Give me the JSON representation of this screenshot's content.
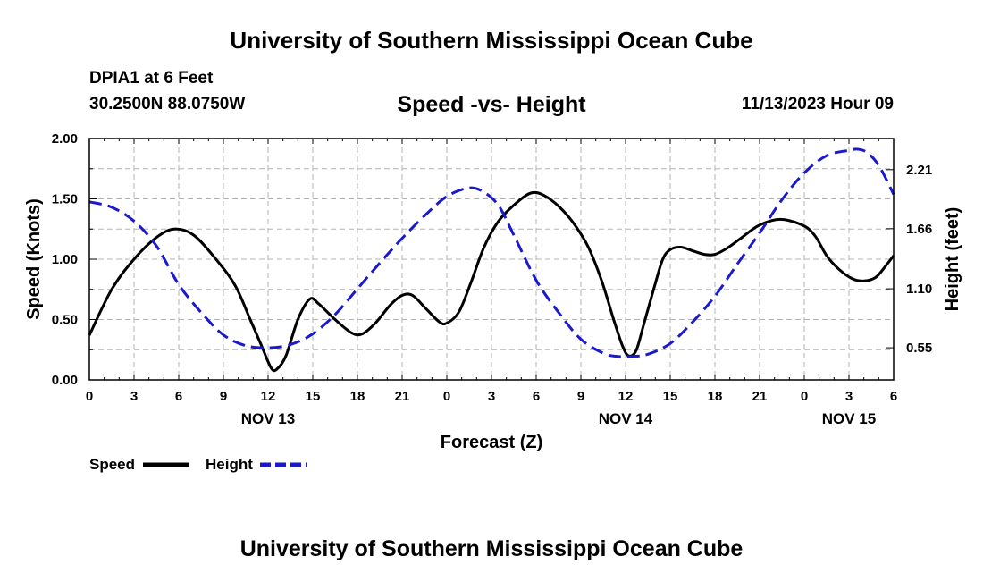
{
  "header": {
    "title": "University of Southern Mississippi Ocean Cube",
    "station": "DPIA1 at 6 Feet",
    "coords": "30.2500N  88.0750W",
    "datetime": "11/13/2023 Hour 09"
  },
  "footer": {
    "title": "University of Southern Mississippi Ocean Cube"
  },
  "chart_data": {
    "type": "line",
    "title": "Speed -vs- Height",
    "xlabel": "Forecast (Z)",
    "ylabel_left": "Speed (Knots)",
    "ylabel_right": "Height (feet)",
    "x_unit": "hours from Nov 13 00Z",
    "xlim": [
      0,
      54
    ],
    "ylim_left": [
      0,
      2
    ],
    "ylim_right": [
      0.251,
      2.5
    ],
    "grid": true,
    "x_ticks": [
      {
        "value": 0,
        "label": "0"
      },
      {
        "value": 3,
        "label": "3"
      },
      {
        "value": 6,
        "label": "6"
      },
      {
        "value": 9,
        "label": "9"
      },
      {
        "value": 12,
        "label": "12"
      },
      {
        "value": 15,
        "label": "15"
      },
      {
        "value": 18,
        "label": "18"
      },
      {
        "value": 21,
        "label": "21"
      },
      {
        "value": 24,
        "label": "0"
      },
      {
        "value": 27,
        "label": "3"
      },
      {
        "value": 30,
        "label": "6"
      },
      {
        "value": 33,
        "label": "9"
      },
      {
        "value": 36,
        "label": "12"
      },
      {
        "value": 39,
        "label": "15"
      },
      {
        "value": 42,
        "label": "18"
      },
      {
        "value": 45,
        "label": "21"
      },
      {
        "value": 48,
        "label": "0"
      },
      {
        "value": 51,
        "label": "3"
      },
      {
        "value": 54,
        "label": "6"
      }
    ],
    "date_labels": [
      {
        "value": 12,
        "label": "NOV 13"
      },
      {
        "value": 36,
        "label": "NOV 14"
      },
      {
        "value": 51,
        "label": "NOV 15"
      }
    ],
    "y_ticks_left": [
      {
        "value": 0,
        "label": "0.00"
      },
      {
        "value": 0.5,
        "label": "0.50"
      },
      {
        "value": 1.0,
        "label": "1.00"
      },
      {
        "value": 1.5,
        "label": "1.50"
      },
      {
        "value": 2.0,
        "label": "2.00"
      }
    ],
    "y_ticks_right": [
      {
        "value": 0.55,
        "label": "0.55"
      },
      {
        "value": 1.1,
        "label": "1.10"
      },
      {
        "value": 1.66,
        "label": "1.66"
      },
      {
        "value": 2.21,
        "label": "2.21"
      }
    ],
    "series": [
      {
        "name": "Speed",
        "axis": "left",
        "color": "#000000",
        "style": "solid",
        "points": [
          [
            0,
            0.37
          ],
          [
            1.5,
            0.75
          ],
          [
            3,
            1.0
          ],
          [
            4.5,
            1.18
          ],
          [
            5.7,
            1.25
          ],
          [
            7,
            1.2
          ],
          [
            8.5,
            1.0
          ],
          [
            9.8,
            0.78
          ],
          [
            10.8,
            0.5
          ],
          [
            11.5,
            0.3
          ],
          [
            12.2,
            0.1
          ],
          [
            12.6,
            0.09
          ],
          [
            13.2,
            0.2
          ],
          [
            14,
            0.5
          ],
          [
            14.8,
            0.67
          ],
          [
            15.4,
            0.63
          ],
          [
            16.5,
            0.5
          ],
          [
            17.6,
            0.39
          ],
          [
            18.3,
            0.38
          ],
          [
            19.2,
            0.47
          ],
          [
            20.2,
            0.62
          ],
          [
            21,
            0.7
          ],
          [
            21.7,
            0.7
          ],
          [
            22.6,
            0.59
          ],
          [
            23.5,
            0.48
          ],
          [
            24,
            0.47
          ],
          [
            24.8,
            0.56
          ],
          [
            25.6,
            0.8
          ],
          [
            26.5,
            1.1
          ],
          [
            27.5,
            1.32
          ],
          [
            28.8,
            1.48
          ],
          [
            29.7,
            1.55
          ],
          [
            30.5,
            1.53
          ],
          [
            31.5,
            1.44
          ],
          [
            32.5,
            1.3
          ],
          [
            33.5,
            1.1
          ],
          [
            34.4,
            0.82
          ],
          [
            35.2,
            0.5
          ],
          [
            35.8,
            0.28
          ],
          [
            36.2,
            0.2
          ],
          [
            36.7,
            0.24
          ],
          [
            37.2,
            0.45
          ],
          [
            38,
            0.8
          ],
          [
            38.5,
            1.0
          ],
          [
            39,
            1.08
          ],
          [
            39.7,
            1.1
          ],
          [
            40.5,
            1.07
          ],
          [
            41.3,
            1.04
          ],
          [
            42,
            1.04
          ],
          [
            42.8,
            1.09
          ],
          [
            43.7,
            1.17
          ],
          [
            44.8,
            1.27
          ],
          [
            45.8,
            1.32
          ],
          [
            46.5,
            1.33
          ],
          [
            47.3,
            1.31
          ],
          [
            48.2,
            1.26
          ],
          [
            48.8,
            1.18
          ],
          [
            49.5,
            1.03
          ],
          [
            50.3,
            0.92
          ],
          [
            51.2,
            0.84
          ],
          [
            52,
            0.82
          ],
          [
            52.8,
            0.85
          ],
          [
            53.5,
            0.95
          ],
          [
            54,
            1.03
          ]
        ]
      },
      {
        "name": "Height",
        "axis": "right",
        "color": "#1a1acc",
        "style": "dashed",
        "points": [
          [
            0,
            1.91
          ],
          [
            1.5,
            1.86
          ],
          [
            3,
            1.73
          ],
          [
            4.5,
            1.5
          ],
          [
            6,
            1.14
          ],
          [
            7.5,
            0.88
          ],
          [
            9,
            0.67
          ],
          [
            10.5,
            0.57
          ],
          [
            12,
            0.55
          ],
          [
            13.5,
            0.58
          ],
          [
            15,
            0.68
          ],
          [
            16.5,
            0.86
          ],
          [
            18,
            1.1
          ],
          [
            19.5,
            1.34
          ],
          [
            21,
            1.57
          ],
          [
            22.5,
            1.78
          ],
          [
            24,
            1.96
          ],
          [
            25.5,
            2.04
          ],
          [
            26.5,
            2.0
          ],
          [
            27.5,
            1.87
          ],
          [
            28.5,
            1.6
          ],
          [
            30,
            1.18
          ],
          [
            31.5,
            0.88
          ],
          [
            33,
            0.63
          ],
          [
            34.5,
            0.5
          ],
          [
            35.5,
            0.47
          ],
          [
            36.5,
            0.47
          ],
          [
            37.5,
            0.49
          ],
          [
            39,
            0.59
          ],
          [
            40.5,
            0.79
          ],
          [
            42,
            1.03
          ],
          [
            43.5,
            1.33
          ],
          [
            45,
            1.62
          ],
          [
            46.5,
            1.93
          ],
          [
            48,
            2.18
          ],
          [
            49.5,
            2.34
          ],
          [
            51,
            2.39
          ],
          [
            51.6,
            2.4
          ],
          [
            52.2,
            2.37
          ],
          [
            53,
            2.25
          ],
          [
            54,
            1.98
          ]
        ]
      }
    ]
  }
}
